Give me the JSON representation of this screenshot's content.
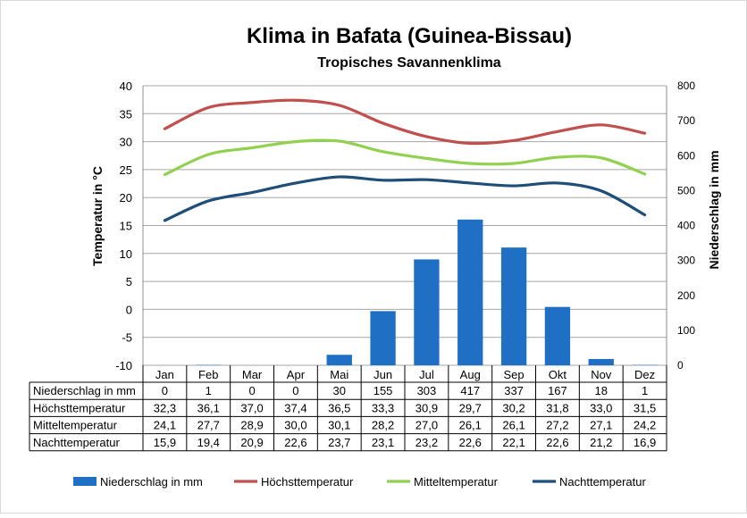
{
  "chart_data": {
    "type": "bar+line",
    "title": "Klima in Bafata (Guinea-Bissau)",
    "subtitle": "Tropisches Savannenklima",
    "ylabel_left": "Temperatur in °C",
    "ylabel_right": "Niederschlag in mm",
    "ylim_left": [
      -10,
      40
    ],
    "yticks_left": [
      "40",
      "35",
      "30",
      "25",
      "20",
      "15",
      "10",
      "5",
      "0",
      "-5",
      "-10"
    ],
    "ylim_right": [
      0,
      800
    ],
    "yticks_right": [
      "800",
      "700",
      "600",
      "500",
      "400",
      "300",
      "200",
      "100",
      "0"
    ],
    "grid": true,
    "legend_position": "bottom",
    "categories": [
      "Jan",
      "Feb",
      "Mar",
      "Apr",
      "Mai",
      "Jun",
      "Jul",
      "Aug",
      "Sep",
      "Okt",
      "Nov",
      "Dez"
    ],
    "series": [
      {
        "name": "Niederschlag in mm",
        "kind": "bar",
        "axis": "right",
        "color": "#1f6fc5",
        "values": [
          0,
          1,
          0,
          0,
          30,
          155,
          303,
          417,
          337,
          167,
          18,
          1
        ],
        "labels": [
          "0",
          "1",
          "0",
          "0",
          "30",
          "155",
          "303",
          "417",
          "337",
          "167",
          "18",
          "1"
        ]
      },
      {
        "name": "Höchsttemperatur",
        "kind": "line",
        "axis": "left",
        "color": "#c0504d",
        "values": [
          32.3,
          36.1,
          37.0,
          37.4,
          36.5,
          33.3,
          30.9,
          29.7,
          30.2,
          31.8,
          33.0,
          31.5
        ],
        "labels": [
          "32,3",
          "36,1",
          "37,0",
          "37,4",
          "36,5",
          "33,3",
          "30,9",
          "29,7",
          "30,2",
          "31,8",
          "33,0",
          "31,5"
        ]
      },
      {
        "name": "Mitteltemperatur",
        "kind": "line",
        "axis": "left",
        "color": "#92d050",
        "values": [
          24.1,
          27.7,
          28.9,
          30.0,
          30.1,
          28.2,
          27.0,
          26.1,
          26.1,
          27.2,
          27.1,
          24.2
        ],
        "labels": [
          "24,1",
          "27,7",
          "28,9",
          "30,0",
          "30,1",
          "28,2",
          "27,0",
          "26,1",
          "26,1",
          "27,2",
          "27,1",
          "24,2"
        ]
      },
      {
        "name": "Nachttemperatur",
        "kind": "line",
        "axis": "left",
        "color": "#1f4e79",
        "values": [
          15.9,
          19.4,
          20.9,
          22.6,
          23.7,
          23.1,
          23.2,
          22.6,
          22.1,
          22.6,
          21.2,
          16.9
        ],
        "labels": [
          "15,9",
          "19,4",
          "20,9",
          "22,6",
          "23,7",
          "23,1",
          "23,2",
          "22,6",
          "22,1",
          "22,6",
          "21,2",
          "16,9"
        ]
      }
    ]
  }
}
